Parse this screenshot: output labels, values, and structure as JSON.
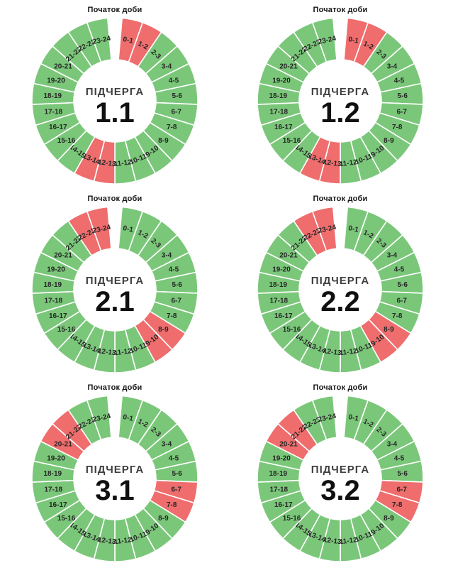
{
  "page": {
    "background": "#ffffff",
    "description": "Six 24-hour donut schedule charts in a 2x3 grid"
  },
  "colors": {
    "available": "#7BC77A",
    "outage": "#EF6D6D",
    "divider": "#ffffff",
    "slice_label_text": "#262626",
    "center_title_color": "#3f3f3f",
    "center_number_color": "#101010",
    "top_label_color": "#161616"
  },
  "layout_hints": {
    "donut": true,
    "outer_radius": 117,
    "inner_radius": 58,
    "label_radius": 88,
    "top_gap_degrees": 10,
    "direction": "clockwise-from-top"
  },
  "chart_data": [
    {
      "type": "pie",
      "variant": "donut-24h-schedule",
      "top_label": "Початок доби",
      "center_title": "ПІДЧЕРГА",
      "center_number": "1.1",
      "categories": [
        "0-1",
        "1-2",
        "2-3",
        "3-4",
        "4-5",
        "5-6",
        "6-7",
        "7-8",
        "8-9",
        "9-10",
        "10-11",
        "11-12",
        "12-13",
        "13-14",
        "14-15",
        "15-16",
        "16-17",
        "17-18",
        "18-19",
        "19-20",
        "20-21",
        "21-22",
        "22-23",
        "23-24"
      ],
      "values": [
        1,
        1,
        1,
        1,
        1,
        1,
        1,
        1,
        1,
        1,
        1,
        1,
        1,
        1,
        1,
        1,
        1,
        1,
        1,
        1,
        1,
        1,
        1,
        1
      ],
      "statuses": [
        "outage",
        "outage",
        "available",
        "available",
        "available",
        "available",
        "available",
        "available",
        "available",
        "available",
        "available",
        "available",
        "outage",
        "outage",
        "available",
        "available",
        "available",
        "available",
        "available",
        "available",
        "available",
        "available",
        "available",
        "available"
      ],
      "outage_hours": [
        "0-1",
        "1-2",
        "12-13",
        "13-14"
      ]
    },
    {
      "type": "pie",
      "variant": "donut-24h-schedule",
      "top_label": "Початок доби",
      "center_title": "ПІДЧЕРГА",
      "center_number": "1.2",
      "categories": [
        "0-1",
        "1-2",
        "2-3",
        "3-4",
        "4-5",
        "5-6",
        "6-7",
        "7-8",
        "8-9",
        "9-10",
        "10-11",
        "11-12",
        "12-13",
        "13-14",
        "14-15",
        "15-16",
        "16-17",
        "17-18",
        "18-19",
        "19-20",
        "20-21",
        "21-22",
        "22-23",
        "23-24"
      ],
      "values": [
        1,
        1,
        1,
        1,
        1,
        1,
        1,
        1,
        1,
        1,
        1,
        1,
        1,
        1,
        1,
        1,
        1,
        1,
        1,
        1,
        1,
        1,
        1,
        1
      ],
      "statuses": [
        "outage",
        "outage",
        "available",
        "available",
        "available",
        "available",
        "available",
        "available",
        "available",
        "available",
        "available",
        "available",
        "outage",
        "outage",
        "available",
        "available",
        "available",
        "available",
        "available",
        "available",
        "available",
        "available",
        "available",
        "available"
      ],
      "outage_hours": [
        "0-1",
        "1-2",
        "12-13",
        "13-14"
      ]
    },
    {
      "type": "pie",
      "variant": "donut-24h-schedule",
      "top_label": "Початок доби",
      "center_title": "ПІДЧЕРГА",
      "center_number": "2.1",
      "categories": [
        "0-1",
        "1-2",
        "2-3",
        "3-4",
        "4-5",
        "5-6",
        "6-7",
        "7-8",
        "8-9",
        "9-10",
        "10-11",
        "11-12",
        "12-13",
        "13-14",
        "14-15",
        "15-16",
        "16-17",
        "17-18",
        "18-19",
        "19-20",
        "20-21",
        "21-22",
        "22-23",
        "23-24"
      ],
      "values": [
        1,
        1,
        1,
        1,
        1,
        1,
        1,
        1,
        1,
        1,
        1,
        1,
        1,
        1,
        1,
        1,
        1,
        1,
        1,
        1,
        1,
        1,
        1,
        1
      ],
      "statuses": [
        "available",
        "available",
        "available",
        "available",
        "available",
        "available",
        "available",
        "available",
        "outage",
        "outage",
        "available",
        "available",
        "available",
        "available",
        "available",
        "available",
        "available",
        "available",
        "available",
        "available",
        "available",
        "available",
        "outage",
        "outage"
      ],
      "outage_hours": [
        "8-9",
        "9-10",
        "22-23",
        "23-24"
      ]
    },
    {
      "type": "pie",
      "variant": "donut-24h-schedule",
      "top_label": "Початок доби",
      "center_title": "ПІДЧЕРГА",
      "center_number": "2.2",
      "categories": [
        "0-1",
        "1-2",
        "2-3",
        "3-4",
        "4-5",
        "5-6",
        "6-7",
        "7-8",
        "8-9",
        "9-10",
        "10-11",
        "11-12",
        "12-13",
        "13-14",
        "14-15",
        "15-16",
        "16-17",
        "17-18",
        "18-19",
        "19-20",
        "20-21",
        "21-22",
        "22-23",
        "23-24"
      ],
      "values": [
        1,
        1,
        1,
        1,
        1,
        1,
        1,
        1,
        1,
        1,
        1,
        1,
        1,
        1,
        1,
        1,
        1,
        1,
        1,
        1,
        1,
        1,
        1,
        1
      ],
      "statuses": [
        "available",
        "available",
        "available",
        "available",
        "available",
        "available",
        "available",
        "available",
        "outage",
        "outage",
        "available",
        "available",
        "available",
        "available",
        "available",
        "available",
        "available",
        "available",
        "available",
        "available",
        "available",
        "available",
        "outage",
        "outage"
      ],
      "outage_hours": [
        "8-9",
        "9-10",
        "22-23",
        "23-24"
      ]
    },
    {
      "type": "pie",
      "variant": "donut-24h-schedule",
      "top_label": "Початок доби",
      "center_title": "ПІДЧЕРГА",
      "center_number": "3.1",
      "categories": [
        "0-1",
        "1-2",
        "2-3",
        "3-4",
        "4-5",
        "5-6",
        "6-7",
        "7-8",
        "8-9",
        "9-10",
        "10-11",
        "11-12",
        "12-13",
        "13-14",
        "14-15",
        "15-16",
        "16-17",
        "17-18",
        "18-19",
        "19-20",
        "20-21",
        "21-22",
        "22-23",
        "23-24"
      ],
      "values": [
        1,
        1,
        1,
        1,
        1,
        1,
        1,
        1,
        1,
        1,
        1,
        1,
        1,
        1,
        1,
        1,
        1,
        1,
        1,
        1,
        1,
        1,
        1,
        1
      ],
      "statuses": [
        "available",
        "available",
        "available",
        "available",
        "available",
        "available",
        "outage",
        "outage",
        "available",
        "available",
        "available",
        "available",
        "available",
        "available",
        "available",
        "available",
        "available",
        "available",
        "available",
        "available",
        "outage",
        "outage",
        "available",
        "available"
      ],
      "outage_hours": [
        "6-7",
        "7-8",
        "20-21",
        "21-22"
      ]
    },
    {
      "type": "pie",
      "variant": "donut-24h-schedule",
      "top_label": "Початок доби",
      "center_title": "ПІДЧЕРГА",
      "center_number": "3.2",
      "categories": [
        "0-1",
        "1-2",
        "2-3",
        "3-4",
        "4-5",
        "5-6",
        "6-7",
        "7-8",
        "8-9",
        "9-10",
        "10-11",
        "11-12",
        "12-13",
        "13-14",
        "14-15",
        "15-16",
        "16-17",
        "17-18",
        "18-19",
        "19-20",
        "20-21",
        "21-22",
        "22-23",
        "23-24"
      ],
      "values": [
        1,
        1,
        1,
        1,
        1,
        1,
        1,
        1,
        1,
        1,
        1,
        1,
        1,
        1,
        1,
        1,
        1,
        1,
        1,
        1,
        1,
        1,
        1,
        1
      ],
      "statuses": [
        "available",
        "available",
        "available",
        "available",
        "available",
        "available",
        "outage",
        "outage",
        "available",
        "available",
        "available",
        "available",
        "available",
        "available",
        "available",
        "available",
        "available",
        "available",
        "available",
        "available",
        "outage",
        "outage",
        "available",
        "available"
      ],
      "outage_hours": [
        "6-7",
        "7-8",
        "20-21",
        "21-22"
      ]
    }
  ]
}
